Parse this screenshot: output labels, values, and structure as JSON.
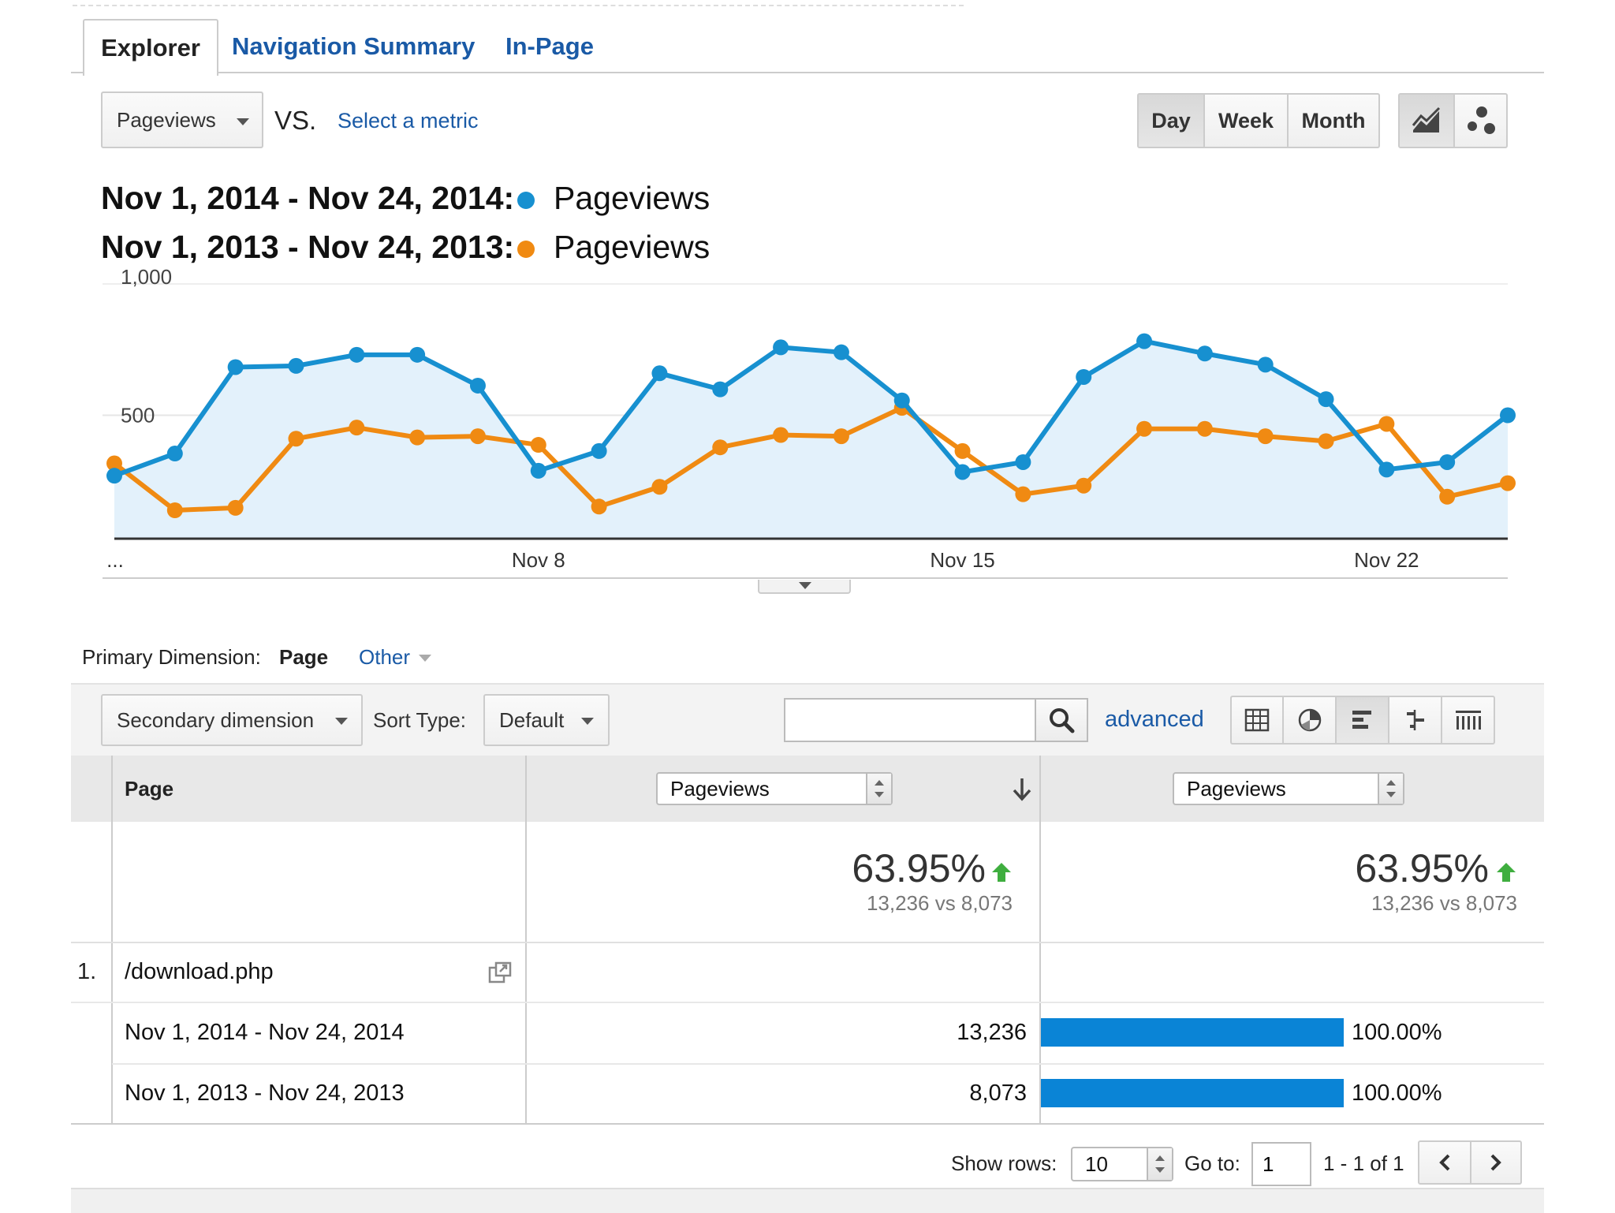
{
  "tabs": {
    "explorer": "Explorer",
    "navigation_summary": "Navigation Summary",
    "in_page": "In-Page"
  },
  "controls": {
    "metric": "Pageviews",
    "vs": "VS.",
    "select_metric": "Select a metric",
    "period_buttons": [
      "Day",
      "Week",
      "Month"
    ],
    "active_period": "Day",
    "chart_type_icons": [
      "line-chart-icon",
      "motion-chart-icon"
    ]
  },
  "legend": [
    {
      "range": "Nov 1, 2014 - Nov 24, 2014:",
      "metric": "Pageviews",
      "color": "#1790d0"
    },
    {
      "range": "Nov 1, 2013 - Nov 24, 2013:",
      "metric": "Pageviews",
      "color": "#f08a12"
    }
  ],
  "chart_data": {
    "type": "line",
    "x": [
      "Nov 1",
      "Nov 2",
      "Nov 3",
      "Nov 4",
      "Nov 5",
      "Nov 6",
      "Nov 7",
      "Nov 8",
      "Nov 9",
      "Nov 10",
      "Nov 11",
      "Nov 12",
      "Nov 13",
      "Nov 14",
      "Nov 15",
      "Nov 16",
      "Nov 17",
      "Nov 18",
      "Nov 19",
      "Nov 20",
      "Nov 21",
      "Nov 22",
      "Nov 23",
      "Nov 24"
    ],
    "x_tick_labels": [
      "...",
      "Nov 8",
      "Nov 15",
      "Nov 22"
    ],
    "y_tick_labels": [
      "1,000",
      "500"
    ],
    "ylim": [
      0,
      1000
    ],
    "grid": true,
    "series": [
      {
        "name": "Pageviews",
        "color": "#1790d0",
        "fill": "#e3f1fb",
        "values": [
          255,
          345,
          695,
          700,
          745,
          745,
          620,
          275,
          355,
          670,
          605,
          775,
          755,
          560,
          270,
          310,
          655,
          800,
          750,
          705,
          565,
          280,
          310,
          500
        ]
      },
      {
        "name": "Pageviews",
        "color": "#f08a12",
        "values": [
          305,
          115,
          125,
          405,
          450,
          410,
          415,
          380,
          130,
          210,
          370,
          420,
          415,
          530,
          355,
          180,
          215,
          445,
          445,
          415,
          395,
          465,
          170,
          225
        ]
      }
    ]
  },
  "dimension": {
    "label": "Primary Dimension:",
    "active": "Page",
    "other": "Other"
  },
  "toolbar": {
    "secondary_dimension": "Secondary dimension",
    "sort_type_label": "Sort Type:",
    "sort_type_value": "Default",
    "search_value": "",
    "advanced": "advanced",
    "view_icons": [
      "table-view-icon",
      "pie-view-icon",
      "performance-view-icon",
      "comparison-view-icon",
      "pivot-view-icon"
    ]
  },
  "table": {
    "col_page": "Page",
    "col_metric_1": "Pageviews",
    "col_metric_2": "Pageviews",
    "summary": {
      "pct1": "63.95%",
      "sub1": "13,236 vs 8,073",
      "pct2": "63.95%",
      "sub2": "13,236 vs 8,073"
    },
    "rows": [
      {
        "index": "1.",
        "page": "/download.php",
        "periods": [
          {
            "range": "Nov 1, 2014 - Nov 24, 2014",
            "value": "13,236",
            "pct": "100.00%",
            "bar_fraction": 1.0
          },
          {
            "range": "Nov 1, 2013 - Nov 24, 2013",
            "value": "8,073",
            "pct": "100.00%",
            "bar_fraction": 1.0
          }
        ]
      }
    ]
  },
  "pagination": {
    "show_rows_label": "Show rows:",
    "show_rows_value": "10",
    "goto_label": "Go to:",
    "goto_value": "1",
    "range_text": "1 - 1 of 1"
  }
}
